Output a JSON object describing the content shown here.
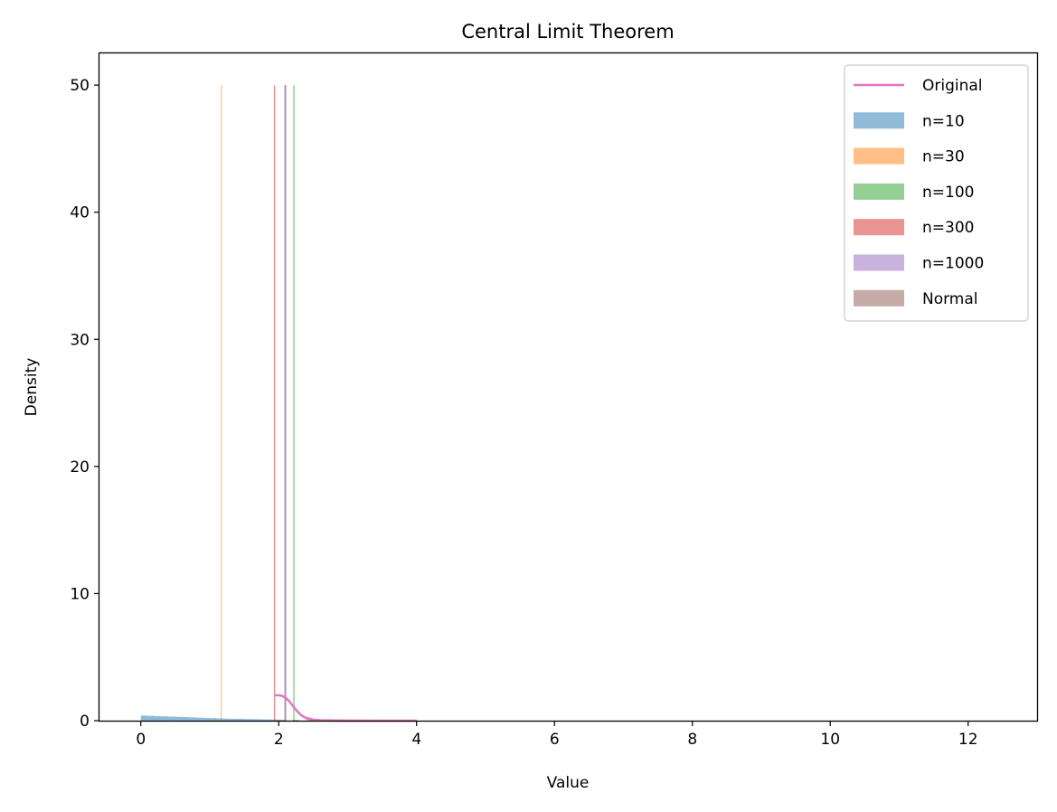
{
  "chart_data": {
    "type": "histogram",
    "title": "Central Limit Theorem",
    "xlabel": "Value",
    "ylabel": "Density",
    "xlim": [
      -0.6,
      13.0
    ],
    "ylim": [
      0,
      52.5
    ],
    "xticks": [
      0,
      2,
      4,
      6,
      8,
      10,
      12
    ],
    "yticks": [
      0,
      10,
      20,
      30,
      40,
      50
    ],
    "grid": false,
    "legend_position": "top-right",
    "legend": [
      "Original",
      "n=10",
      "n=30",
      "n=100",
      "n=300",
      "n=1000",
      "Normal"
    ],
    "series": [
      {
        "name": "n=10",
        "kind": "bars",
        "color": "#1f77b4",
        "opacity": 0.5,
        "bin_width": 0.1,
        "bars": [
          {
            "x": 0.0,
            "y": 0.4
          },
          {
            "x": 0.1,
            "y": 0.38
          },
          {
            "x": 0.2,
            "y": 0.36
          },
          {
            "x": 0.3,
            "y": 0.34
          },
          {
            "x": 0.4,
            "y": 0.32
          },
          {
            "x": 0.5,
            "y": 0.3
          },
          {
            "x": 0.6,
            "y": 0.28
          },
          {
            "x": 0.7,
            "y": 0.26
          },
          {
            "x": 0.8,
            "y": 0.24
          },
          {
            "x": 0.9,
            "y": 0.22
          },
          {
            "x": 1.0,
            "y": 0.2
          },
          {
            "x": 1.1,
            "y": 0.18
          },
          {
            "x": 1.2,
            "y": 0.16
          },
          {
            "x": 1.3,
            "y": 0.15
          },
          {
            "x": 1.4,
            "y": 0.14
          },
          {
            "x": 1.5,
            "y": 0.13
          },
          {
            "x": 1.6,
            "y": 0.12
          },
          {
            "x": 1.7,
            "y": 0.11
          },
          {
            "x": 1.8,
            "y": 0.1
          },
          {
            "x": 1.9,
            "y": 0.09
          },
          {
            "x": 2.0,
            "y": 0.08
          },
          {
            "x": 2.2,
            "y": 0.06
          },
          {
            "x": 2.4,
            "y": 0.05
          },
          {
            "x": 2.6,
            "y": 0.04
          },
          {
            "x": 2.8,
            "y": 0.03
          },
          {
            "x": 3.0,
            "y": 0.03
          },
          {
            "x": 3.2,
            "y": 0.02
          },
          {
            "x": 3.4,
            "y": 0.02
          },
          {
            "x": 3.6,
            "y": 0.01
          },
          {
            "x": 3.8,
            "y": 0.01
          }
        ]
      },
      {
        "name": "n=30",
        "kind": "bars",
        "color": "#ff7f0e",
        "opacity": 0.5,
        "bin_width": 0.012,
        "bars": [
          {
            "x": 1.16,
            "y": 50
          }
        ]
      },
      {
        "name": "n=100",
        "kind": "bars",
        "color": "#2ca02c",
        "opacity": 0.5,
        "bin_width": 0.02,
        "bars": [
          {
            "x": 2.21,
            "y": 50
          }
        ]
      },
      {
        "name": "n=300",
        "kind": "bars",
        "color": "#d62728",
        "opacity": 0.5,
        "bin_width": 0.02,
        "bars": [
          {
            "x": 1.93,
            "y": 50
          }
        ]
      },
      {
        "name": "n=1000",
        "kind": "bars",
        "color": "#9467bd",
        "opacity": 0.5,
        "bin_width": 0.02,
        "bars": [
          {
            "x": 2.08,
            "y": 50
          }
        ]
      },
      {
        "name": "Normal",
        "kind": "bars",
        "color": "#8c564b",
        "opacity": 0.5,
        "bin_width": 0.02,
        "bars": [
          {
            "x": 2.09,
            "y": 50
          }
        ]
      },
      {
        "name": "Original",
        "kind": "line",
        "color": "#e377c2",
        "x": [
          1.95,
          2.0,
          2.05,
          2.1,
          2.15,
          2.2,
          2.25,
          2.3,
          2.35,
          2.4,
          2.5,
          2.6,
          2.8,
          3.0,
          3.5,
          4.0
        ],
        "y": [
          2.0,
          2.0,
          1.95,
          1.8,
          1.55,
          1.2,
          0.85,
          0.55,
          0.35,
          0.2,
          0.08,
          0.03,
          0.01,
          0.005,
          0.0,
          0.0
        ]
      }
    ]
  }
}
